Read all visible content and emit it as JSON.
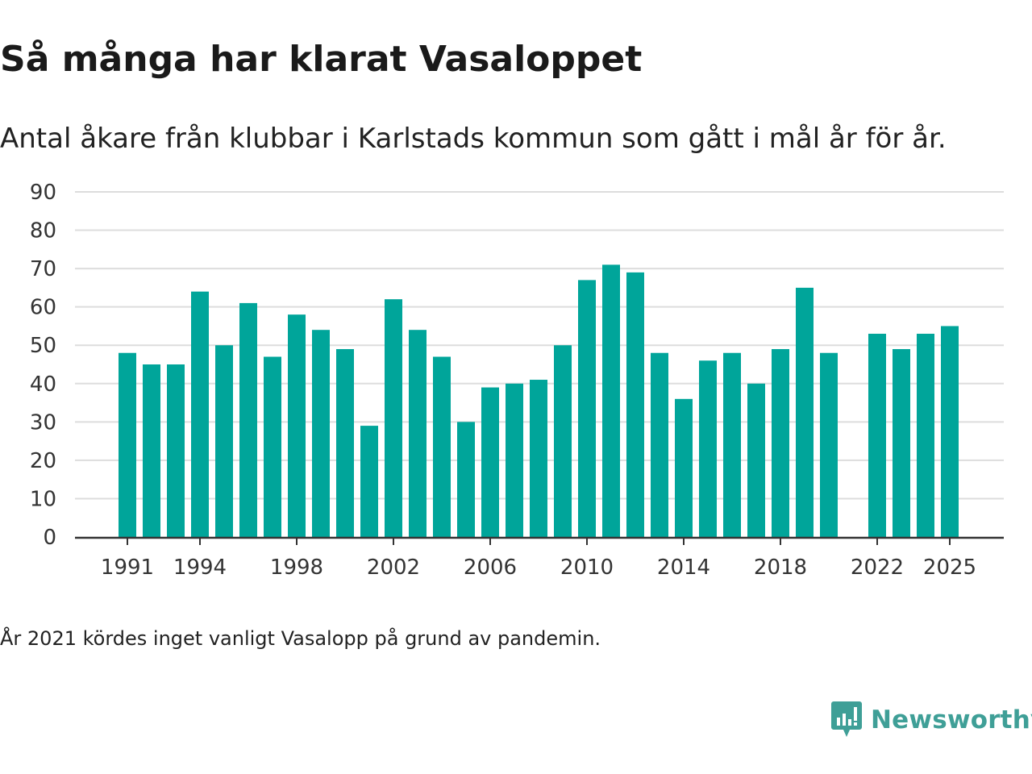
{
  "title": "Så många har klarat Vasaloppet",
  "subtitle": "Antal åkare från klubbar i Karlstads kommun som gått i mål år för år.",
  "note": "År 2021 kördes inget vanligt Vasalopp på grund av pandemin.",
  "brand": {
    "name": "Newsworthy",
    "logo_icon": "newsworthy-chart-bubble-icon"
  },
  "colors": {
    "bar": "#00a59a",
    "grid": "#dddddd",
    "axis": "#333333",
    "brand": "#3f9f97"
  },
  "chart_data": {
    "type": "bar",
    "title": "Så många har klarat Vasaloppet",
    "xlabel": "",
    "ylabel": "",
    "ylim": [
      0,
      90
    ],
    "yticks": [
      0,
      10,
      20,
      30,
      40,
      50,
      60,
      70,
      80,
      90
    ],
    "xticks": [
      "1991",
      "1994",
      "1998",
      "2002",
      "2006",
      "2010",
      "2014",
      "2018",
      "2022",
      "2025"
    ],
    "grid": true,
    "categories": [
      "1991",
      "1992",
      "1993",
      "1994",
      "1995",
      "1996",
      "1997",
      "1998",
      "1999",
      "2000",
      "2001",
      "2002",
      "2003",
      "2004",
      "2005",
      "2006",
      "2007",
      "2008",
      "2009",
      "2010",
      "2011",
      "2012",
      "2013",
      "2014",
      "2015",
      "2016",
      "2017",
      "2018",
      "2019",
      "2020",
      "2021",
      "2022",
      "2023",
      "2024",
      "2025"
    ],
    "values": [
      48,
      45,
      45,
      64,
      50,
      61,
      47,
      58,
      54,
      49,
      29,
      62,
      54,
      47,
      30,
      39,
      40,
      41,
      50,
      67,
      71,
      69,
      48,
      36,
      46,
      48,
      40,
      49,
      65,
      48,
      null,
      53,
      49,
      53,
      55
    ]
  }
}
